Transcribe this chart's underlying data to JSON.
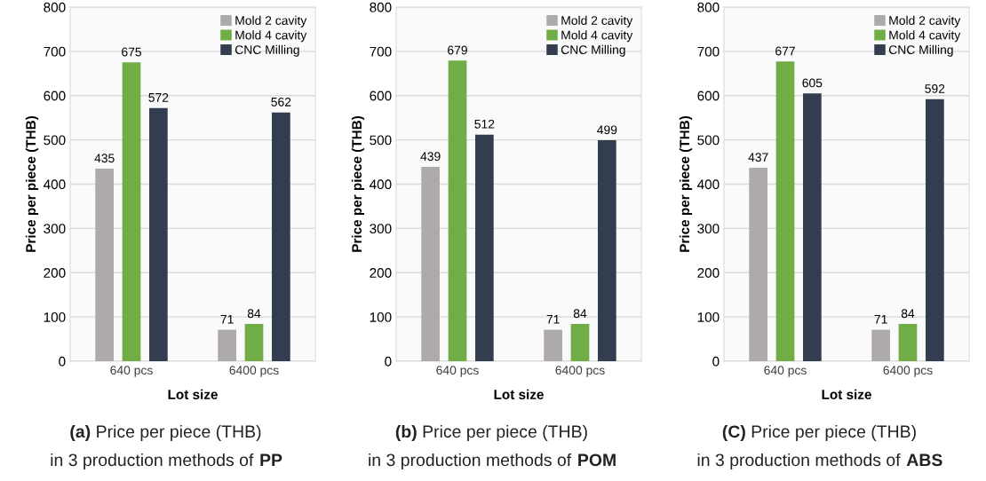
{
  "chart_data": [
    {
      "type": "bar",
      "title": "(a) Price per piece (THB)",
      "subtitle": "in 3 production methods of PP",
      "xlabel": "Lot size",
      "ylabel": "Price per piece (THB)",
      "categories": [
        "640 pcs",
        "6400 pcs"
      ],
      "series": [
        {
          "name": "Mold 2 cavity",
          "color": "#aeaaaa",
          "values": [
            435,
            71
          ]
        },
        {
          "name": "Mold 4 cavity",
          "color": "#70ad47",
          "values": [
            675,
            84
          ]
        },
        {
          "name": "CNC Milling",
          "color": "#323e4f",
          "values": [
            572,
            562
          ]
        }
      ],
      "ylim": [
        0,
        800
      ],
      "yticks": [
        0,
        100,
        200,
        300,
        400,
        500,
        600,
        700,
        800
      ],
      "grid": "y",
      "legend": "top right",
      "data_labels": true
    },
    {
      "type": "bar",
      "title": "(b) Price per piece (THB)",
      "subtitle": "in 3 production methods of POM",
      "xlabel": "Lot size",
      "ylabel": "Price per piece (THB)",
      "categories": [
        "640 pcs",
        "6400 pcs"
      ],
      "series": [
        {
          "name": "Mold 2 cavity",
          "color": "#aeaaaa",
          "values": [
            439,
            71
          ]
        },
        {
          "name": "Mold 4 cavity",
          "color": "#70ad47",
          "values": [
            679,
            84
          ]
        },
        {
          "name": "CNC Milling",
          "color": "#323e4f",
          "values": [
            512,
            499
          ]
        }
      ],
      "ylim": [
        0,
        800
      ],
      "yticks": [
        0,
        100,
        200,
        300,
        400,
        500,
        600,
        700,
        800
      ],
      "grid": "y",
      "legend": "top right",
      "data_labels": true
    },
    {
      "type": "bar",
      "title": "(C) Price per piece (THB)",
      "subtitle": "in 3 production methods of ABS",
      "xlabel": "Lot size",
      "ylabel": "Price per piece (THB)",
      "categories": [
        "640 pcs",
        "6400 pcs"
      ],
      "series": [
        {
          "name": "Mold 2 cavity",
          "color": "#aeaaaa",
          "values": [
            437,
            71
          ]
        },
        {
          "name": "Mold 4 cavity",
          "color": "#70ad47",
          "values": [
            677,
            84
          ]
        },
        {
          "name": "CNC Milling",
          "color": "#323e4f",
          "values": [
            605,
            592
          ]
        }
      ],
      "ylim": [
        0,
        800
      ],
      "yticks": [
        0,
        100,
        200,
        300,
        400,
        500,
        600,
        700,
        800
      ],
      "grid": "y",
      "legend": "top right",
      "data_labels": true
    }
  ]
}
